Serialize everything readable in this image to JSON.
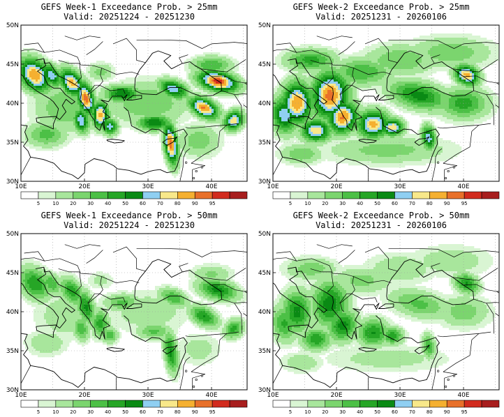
{
  "panels": [
    {
      "title": "GEFS Week-1 Exceedance Prob. > 25mm",
      "valid": "Valid: 20251224 - 20251230",
      "intensity": 1.0,
      "week": 1
    },
    {
      "title": "GEFS Week-2 Exceedance Prob. > 25mm",
      "valid": "Valid: 20251231 - 20260106",
      "intensity": 1.0,
      "week": 2
    },
    {
      "title": "GEFS Week-1 Exceedance Prob. > 50mm",
      "valid": "Valid: 20251224 - 20251230",
      "intensity": 0.55,
      "week": 1
    },
    {
      "title": "GEFS Week-2 Exceedance Prob. > 50mm",
      "valid": "Valid: 20251231 - 20260106",
      "intensity": 0.6,
      "week": 2
    }
  ],
  "lat_labels": [
    "50N",
    "45N",
    "40N",
    "35N",
    "30N"
  ],
  "lon_labels": [
    "10E",
    "20E",
    "30E",
    "40E"
  ],
  "colorbar": {
    "labels": [
      "5",
      "10",
      "20",
      "30",
      "40",
      "50",
      "60",
      "70",
      "80",
      "90",
      "95"
    ],
    "colors": [
      "#ffffff",
      "#d9f5d3",
      "#a8e69c",
      "#7bd56e",
      "#4cc046",
      "#26a626",
      "#0a8a14",
      "#8fcff2",
      "#f8e88a",
      "#f5b030",
      "#e8702a",
      "#d22b1e",
      "#a81e1e"
    ]
  }
}
